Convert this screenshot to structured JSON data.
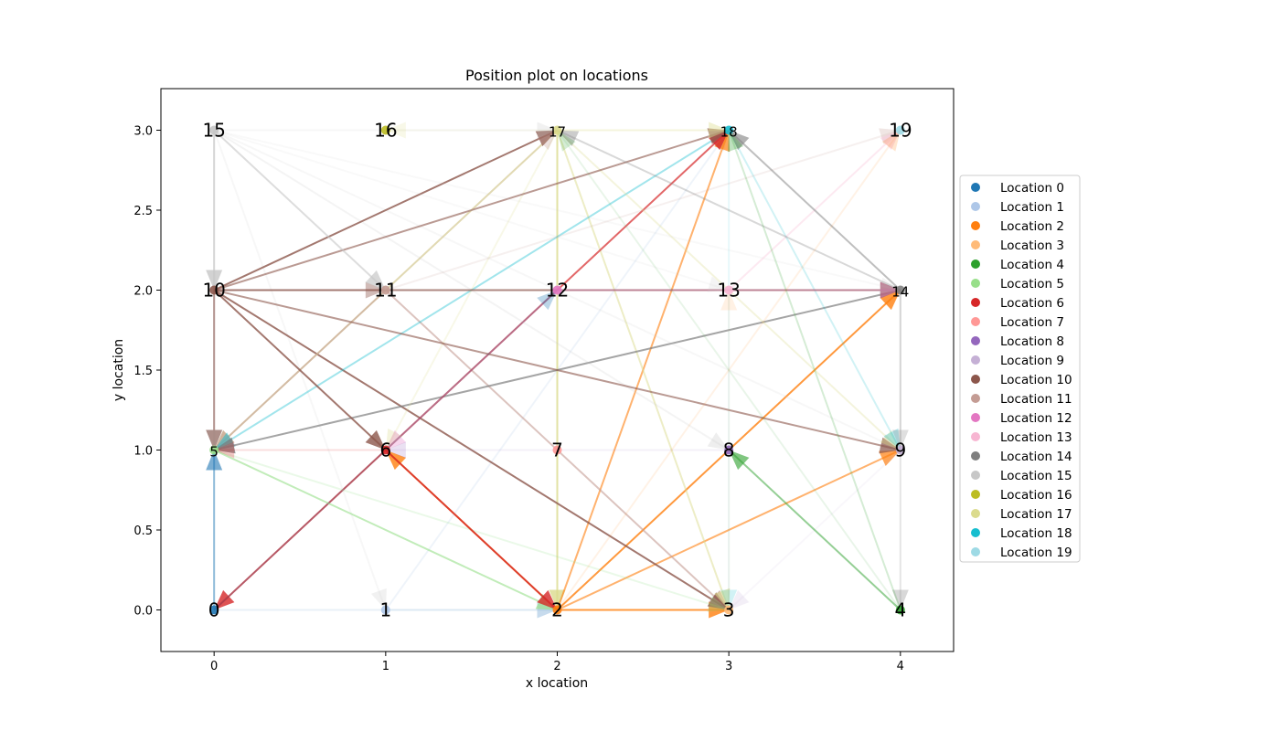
{
  "chart_data": {
    "type": "scatter",
    "title": "Position plot on locations",
    "xlabel": "x location",
    "ylabel": "y location",
    "xlim": [
      -0.31,
      4.31
    ],
    "ylim": [
      -0.26,
      3.26
    ],
    "xticks": [
      "0",
      "1",
      "2",
      "3",
      "4"
    ],
    "yticks": [
      "0.0",
      "0.5",
      "1.0",
      "1.5",
      "2.0",
      "2.5",
      "3.0"
    ],
    "grid": false,
    "legend_position": "right",
    "locations": [
      {
        "id": "0",
        "name": "Location 0",
        "x": 0,
        "y": 0,
        "color": "#1f77b4"
      },
      {
        "id": "1",
        "name": "Location 1",
        "x": 1,
        "y": 0,
        "color": "#aec7e8"
      },
      {
        "id": "2",
        "name": "Location 2",
        "x": 2,
        "y": 0,
        "color": "#ff7f0e"
      },
      {
        "id": "3",
        "name": "Location 3",
        "x": 3,
        "y": 0,
        "color": "#ffbb78"
      },
      {
        "id": "4",
        "name": "Location 4",
        "x": 4,
        "y": 0,
        "color": "#2ca02c"
      },
      {
        "id": "5",
        "name": "Location 5",
        "x": 0,
        "y": 1,
        "color": "#98df8a"
      },
      {
        "id": "6",
        "name": "Location 6",
        "x": 1,
        "y": 1,
        "color": "#d62728"
      },
      {
        "id": "7",
        "name": "Location 7",
        "x": 2,
        "y": 1,
        "color": "#ff9896"
      },
      {
        "id": "8",
        "name": "Location 8",
        "x": 3,
        "y": 1,
        "color": "#9467bd"
      },
      {
        "id": "9",
        "name": "Location 9",
        "x": 4,
        "y": 1,
        "color": "#c5b0d5"
      },
      {
        "id": "10",
        "name": "Location 10",
        "x": 0,
        "y": 2,
        "color": "#8c564b"
      },
      {
        "id": "11",
        "name": "Location 11",
        "x": 1,
        "y": 2,
        "color": "#c49c94"
      },
      {
        "id": "12",
        "name": "Location 12",
        "x": 2,
        "y": 2,
        "color": "#e377c2"
      },
      {
        "id": "13",
        "name": "Location 13",
        "x": 3,
        "y": 2,
        "color": "#f7b6d2"
      },
      {
        "id": "14",
        "name": "Location 14",
        "x": 4,
        "y": 2,
        "color": "#7f7f7f"
      },
      {
        "id": "15",
        "name": "Location 15",
        "x": 0,
        "y": 3,
        "color": "#c7c7c7"
      },
      {
        "id": "16",
        "name": "Location 16",
        "x": 1,
        "y": 3,
        "color": "#bcbd22"
      },
      {
        "id": "17",
        "name": "Location 17",
        "x": 2,
        "y": 3,
        "color": "#dbdb8d"
      },
      {
        "id": "18",
        "name": "Location 18",
        "x": 3,
        "y": 3,
        "color": "#17becf"
      },
      {
        "id": "19",
        "name": "Location 19",
        "x": 4,
        "y": 3,
        "color": "#9edae5"
      }
    ],
    "paths": [
      {
        "from": 2,
        "to": 6,
        "opacity": 0.8
      },
      {
        "from": 6,
        "to": 0,
        "opacity": 0.8
      },
      {
        "from": 0,
        "to": 2,
        "opacity": 0.1
      },
      {
        "from": 1,
        "to": 2,
        "opacity": 0.2
      },
      {
        "from": 1,
        "to": 18,
        "opacity": 0.2
      },
      {
        "from": 15,
        "to": 1,
        "opacity": 0.15
      },
      {
        "from": 17,
        "to": 2,
        "opacity": 0.8
      },
      {
        "from": 2,
        "to": 18,
        "opacity": 0.6
      },
      {
        "from": 2,
        "to": 14,
        "opacity": 0.8
      },
      {
        "from": 2,
        "to": 9,
        "opacity": 0.6
      },
      {
        "from": 2,
        "to": 3,
        "opacity": 0.8
      },
      {
        "from": 11,
        "to": 3,
        "opacity": 0.6
      },
      {
        "from": 10,
        "to": 3,
        "opacity": 0.8
      },
      {
        "from": 17,
        "to": 3,
        "opacity": 0.5
      },
      {
        "from": 18,
        "to": 3,
        "opacity": 0.1
      },
      {
        "from": 9,
        "to": 3,
        "opacity": 0.1
      },
      {
        "from": 17,
        "to": 5,
        "opacity": 0.6
      },
      {
        "from": 11,
        "to": 5,
        "opacity": 0.6
      },
      {
        "from": 18,
        "to": 5,
        "opacity": 0.4
      },
      {
        "from": 14,
        "to": 5,
        "opacity": 0.7
      },
      {
        "from": 5,
        "to": 2,
        "opacity": 0.6
      },
      {
        "from": 5,
        "to": 3,
        "opacity": 0.2
      },
      {
        "from": 10,
        "to": 5,
        "opacity": 0.7
      },
      {
        "from": 15,
        "to": 5,
        "opacity": 0.2
      },
      {
        "from": 0,
        "to": 5,
        "opacity": 0.5
      },
      {
        "from": 6,
        "to": 5,
        "opacity": 0.15
      },
      {
        "from": 6,
        "to": 2,
        "opacity": 0.8
      },
      {
        "from": 6,
        "to": 18,
        "opacity": 0.7
      },
      {
        "from": 10,
        "to": 6,
        "opacity": 0.8
      },
      {
        "from": 17,
        "to": 6,
        "opacity": 0.2
      },
      {
        "from": 12,
        "to": 6,
        "opacity": 0.2
      },
      {
        "from": 8,
        "to": 6,
        "opacity": 0.1
      },
      {
        "from": 4,
        "to": 8,
        "opacity": 0.5
      },
      {
        "from": 15,
        "to": 8,
        "opacity": 0.2
      },
      {
        "from": 15,
        "to": 9,
        "opacity": 0.15
      },
      {
        "from": 10,
        "to": 9,
        "opacity": 0.6
      },
      {
        "from": 17,
        "to": 9,
        "opacity": 0.3
      },
      {
        "from": 18,
        "to": 9,
        "opacity": 0.2
      },
      {
        "from": 15,
        "to": 10,
        "opacity": 0.7
      },
      {
        "from": 10,
        "to": 17,
        "opacity": 0.8
      },
      {
        "from": 10,
        "to": 18,
        "opacity": 0.6
      },
      {
        "from": 10,
        "to": 14,
        "opacity": 0.7
      },
      {
        "from": 10,
        "to": 11,
        "opacity": 0.3
      },
      {
        "from": 15,
        "to": 11,
        "opacity": 0.6
      },
      {
        "from": 11,
        "to": 17,
        "opacity": 0.2
      },
      {
        "from": 11,
        "to": 19,
        "opacity": 0.15
      },
      {
        "from": 0,
        "to": 12,
        "opacity": 0.2
      },
      {
        "from": 12,
        "to": 14,
        "opacity": 0.3
      },
      {
        "from": 15,
        "to": 14,
        "opacity": 0.1
      },
      {
        "from": 15,
        "to": 13,
        "opacity": 0.1
      },
      {
        "from": 13,
        "to": 19,
        "opacity": 0.3
      },
      {
        "from": 3,
        "to": 13,
        "opacity": 0.1
      },
      {
        "from": 14,
        "to": 18,
        "opacity": 0.5
      },
      {
        "from": 14,
        "to": 17,
        "opacity": 0.3
      },
      {
        "from": 14,
        "to": 9,
        "opacity": 0.15
      },
      {
        "from": 14,
        "to": 4,
        "opacity": 0.2
      },
      {
        "from": 15,
        "to": 17,
        "opacity": 0.15
      },
      {
        "from": 17,
        "to": 18,
        "opacity": 0.3
      },
      {
        "from": 17,
        "to": 16,
        "opacity": 0.1
      },
      {
        "from": 4,
        "to": 18,
        "opacity": 0.2
      },
      {
        "from": 4,
        "to": 17,
        "opacity": 0.1
      },
      {
        "from": 2,
        "to": 19,
        "opacity": 0.1
      }
    ]
  }
}
